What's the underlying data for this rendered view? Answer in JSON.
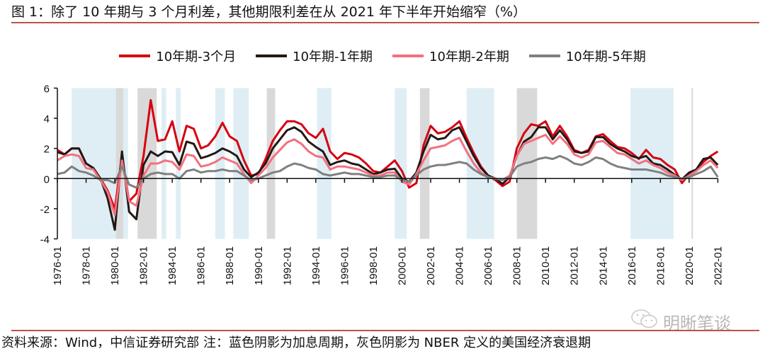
{
  "title": "图 1：除了 10 年期与 3 个月利差，其他期限利差在从 2021 年下半年开始缩窄（%）",
  "footer": "资料来源：Wind，中信证券研究部   注：蓝色阴影为加息周期，灰色阴影为 NBER 定义的美国经济衰退期",
  "watermark": "明晰笔谈",
  "chart_data": {
    "type": "line",
    "title": "",
    "xlabel": "",
    "ylabel": "",
    "ylim": [
      -4,
      6
    ],
    "yticks": [
      "6",
      "4",
      "2",
      "0",
      "-2",
      "-4"
    ],
    "xticks": [
      "1976-01",
      "1978-01",
      "1980-01",
      "1982-01",
      "1984-01",
      "1986-01",
      "1988-01",
      "1990-01",
      "1992-01",
      "1994-01",
      "1996-01",
      "1998-01",
      "2000-01",
      "2002-01",
      "2004-01",
      "2006-01",
      "2008-01",
      "2010-01",
      "2012-01",
      "2014-01",
      "2016-01",
      "2018-01",
      "2020-01",
      "2022-01"
    ],
    "legend_position": "top",
    "grid": false,
    "x": [
      "1976-01",
      "1976-07",
      "1977-01",
      "1977-07",
      "1978-01",
      "1978-07",
      "1979-01",
      "1979-07",
      "1980-01",
      "1980-07",
      "1981-01",
      "1981-07",
      "1982-01",
      "1982-07",
      "1983-01",
      "1983-07",
      "1984-01",
      "1984-07",
      "1985-01",
      "1985-07",
      "1986-01",
      "1986-07",
      "1987-01",
      "1987-07",
      "1988-01",
      "1988-07",
      "1989-01",
      "1989-07",
      "1990-01",
      "1990-07",
      "1991-01",
      "1991-07",
      "1992-01",
      "1992-07",
      "1993-01",
      "1993-07",
      "1994-01",
      "1994-07",
      "1995-01",
      "1995-07",
      "1996-01",
      "1996-07",
      "1997-01",
      "1997-07",
      "1998-01",
      "1998-07",
      "1999-01",
      "1999-07",
      "2000-01",
      "2000-07",
      "2001-01",
      "2001-07",
      "2002-01",
      "2002-07",
      "2003-01",
      "2003-07",
      "2004-01",
      "2004-07",
      "2005-01",
      "2005-07",
      "2006-01",
      "2006-07",
      "2007-01",
      "2007-07",
      "2008-01",
      "2008-07",
      "2009-01",
      "2009-07",
      "2010-01",
      "2010-07",
      "2011-01",
      "2011-07",
      "2012-01",
      "2012-07",
      "2013-01",
      "2013-07",
      "2014-01",
      "2014-07",
      "2015-01",
      "2015-07",
      "2016-01",
      "2016-07",
      "2017-01",
      "2017-07",
      "2018-01",
      "2018-07",
      "2019-01",
      "2019-07",
      "2020-01",
      "2020-07",
      "2021-01",
      "2021-07",
      "2022-01"
    ],
    "series": [
      {
        "name": "10年期-3个月",
        "color": "#d7000f",
        "values": [
          1.9,
          1.6,
          2.0,
          2.0,
          1.0,
          0.7,
          0.0,
          -0.8,
          -2.0,
          1.5,
          -1.5,
          -1.0,
          1.5,
          5.2,
          2.5,
          2.6,
          3.8,
          1.8,
          3.5,
          3.3,
          2.0,
          2.2,
          2.8,
          3.7,
          2.8,
          2.5,
          1.2,
          0.2,
          0.3,
          1.3,
          2.5,
          3.2,
          3.8,
          3.8,
          3.6,
          3.0,
          2.7,
          3.3,
          1.8,
          1.3,
          1.7,
          1.6,
          1.4,
          1.0,
          0.5,
          0.4,
          0.8,
          1.2,
          0.5,
          -0.6,
          -0.3,
          2.2,
          3.5,
          3.0,
          3.1,
          3.4,
          3.8,
          2.7,
          1.7,
          0.8,
          0.2,
          -0.1,
          -0.5,
          -0.2,
          2.0,
          3.0,
          3.6,
          3.5,
          3.8,
          2.8,
          3.5,
          2.8,
          1.9,
          1.7,
          1.9,
          2.8,
          2.95,
          2.5,
          2.1,
          2.0,
          1.7,
          1.3,
          1.9,
          1.4,
          1.3,
          0.9,
          0.6,
          -0.3,
          0.3,
          0.6,
          1.1,
          1.5,
          1.8
        ]
      },
      {
        "name": "10年期-1年期",
        "color": "#231815",
        "values": [
          1.75,
          1.6,
          2.0,
          2.0,
          1.0,
          0.7,
          0.0,
          -1.3,
          -3.4,
          1.8,
          -2.2,
          -2.7,
          0.9,
          1.8,
          1.5,
          1.8,
          1.75,
          0.9,
          2.45,
          2.3,
          1.35,
          1.5,
          1.7,
          2.0,
          1.8,
          1.5,
          0.6,
          0.1,
          0.4,
          1.0,
          2.0,
          2.6,
          3.2,
          3.4,
          3.1,
          2.45,
          2.1,
          1.8,
          0.9,
          1.1,
          1.2,
          1.0,
          0.9,
          0.6,
          0.3,
          0.4,
          0.6,
          0.65,
          0.0,
          -0.2,
          0.4,
          1.8,
          2.9,
          2.6,
          2.7,
          3.2,
          3.4,
          2.45,
          1.5,
          0.7,
          0.2,
          0.0,
          -0.35,
          0.1,
          1.5,
          2.45,
          2.75,
          3.4,
          3.4,
          2.6,
          3.2,
          2.6,
          1.8,
          1.7,
          1.8,
          2.75,
          2.75,
          2.3,
          2.0,
          1.8,
          1.5,
          1.35,
          1.5,
          1.0,
          0.9,
          0.6,
          0.25,
          -0.05,
          0.4,
          0.6,
          1.3,
          1.4,
          0.9
        ]
      },
      {
        "name": "10年期-2年期",
        "color": "#f4707e",
        "values": [
          1.2,
          1.5,
          1.6,
          1.5,
          0.7,
          0.6,
          -0.1,
          -0.9,
          -2.4,
          1.2,
          -1.5,
          -1.8,
          0.2,
          1.0,
          1.0,
          1.2,
          1.1,
          0.6,
          1.6,
          1.5,
          0.8,
          0.9,
          1.1,
          1.4,
          1.2,
          1.0,
          0.3,
          -0.3,
          0.2,
          0.7,
          1.4,
          1.9,
          2.4,
          2.6,
          2.3,
          1.8,
          1.5,
          1.4,
          0.6,
          0.8,
          0.8,
          0.7,
          0.6,
          0.4,
          0.2,
          0.2,
          0.4,
          0.4,
          -0.2,
          -0.4,
          0.3,
          1.2,
          2.0,
          2.1,
          2.2,
          2.5,
          2.7,
          1.8,
          1.0,
          0.4,
          0.1,
          0.0,
          -0.1,
          0.2,
          1.5,
          2.3,
          2.5,
          2.7,
          2.9,
          2.3,
          2.8,
          2.3,
          1.6,
          1.4,
          1.6,
          2.4,
          2.5,
          2.1,
          1.7,
          1.6,
          1.3,
          1.0,
          1.2,
          0.9,
          0.7,
          0.4,
          0.2,
          -0.1,
          0.2,
          0.5,
          0.9,
          1.2,
          0.7
        ]
      },
      {
        "name": "10年期-5年期",
        "color": "#808080",
        "values": [
          0.3,
          0.4,
          0.8,
          0.5,
          0.4,
          0.2,
          -0.1,
          -0.1,
          -0.3,
          0.8,
          -0.4,
          -0.6,
          0.0,
          0.3,
          0.4,
          0.3,
          0.3,
          0.0,
          0.5,
          0.6,
          0.4,
          0.5,
          0.5,
          0.6,
          0.5,
          0.5,
          0.2,
          -0.1,
          0.0,
          0.2,
          0.4,
          0.5,
          0.8,
          1.0,
          0.9,
          0.7,
          0.6,
          0.3,
          0.2,
          0.3,
          0.4,
          0.3,
          0.3,
          0.2,
          0.1,
          0.1,
          0.2,
          0.2,
          -0.1,
          -0.2,
          0.2,
          0.6,
          0.8,
          0.9,
          0.9,
          1.0,
          1.1,
          1.0,
          0.6,
          0.3,
          0.1,
          0.0,
          -0.1,
          0.1,
          0.8,
          1.0,
          1.1,
          1.3,
          1.4,
          1.3,
          1.5,
          1.3,
          1.0,
          0.9,
          1.1,
          1.4,
          1.3,
          1.0,
          0.8,
          0.7,
          0.6,
          0.6,
          0.6,
          0.5,
          0.4,
          0.2,
          0.1,
          0.0,
          0.1,
          0.3,
          0.5,
          0.8,
          0.1
        ]
      }
    ],
    "shading": {
      "hike_color": "#deeef4",
      "recession_color": "#d9d9d9",
      "hike_periods": [
        [
          "1977-01",
          "1980-02"
        ],
        [
          "1980-08",
          "1980-12"
        ],
        [
          "1983-04",
          "1983-08"
        ],
        [
          "1984-04",
          "1984-08"
        ],
        [
          "1987-01",
          "1987-09"
        ],
        [
          "1988-04",
          "1989-05"
        ],
        [
          "1994-02",
          "1995-02"
        ],
        [
          "1999-07",
          "2000-05"
        ],
        [
          "2004-07",
          "2006-06"
        ],
        [
          "2015-12",
          "2018-12"
        ]
      ],
      "recession_periods": [
        [
          "1980-02",
          "1980-08"
        ],
        [
          "1981-08",
          "1982-12"
        ],
        [
          "1990-08",
          "1991-03"
        ],
        [
          "2001-04",
          "2001-12"
        ],
        [
          "2008-01",
          "2009-06"
        ],
        [
          "2020-03",
          "2020-04"
        ]
      ]
    }
  }
}
